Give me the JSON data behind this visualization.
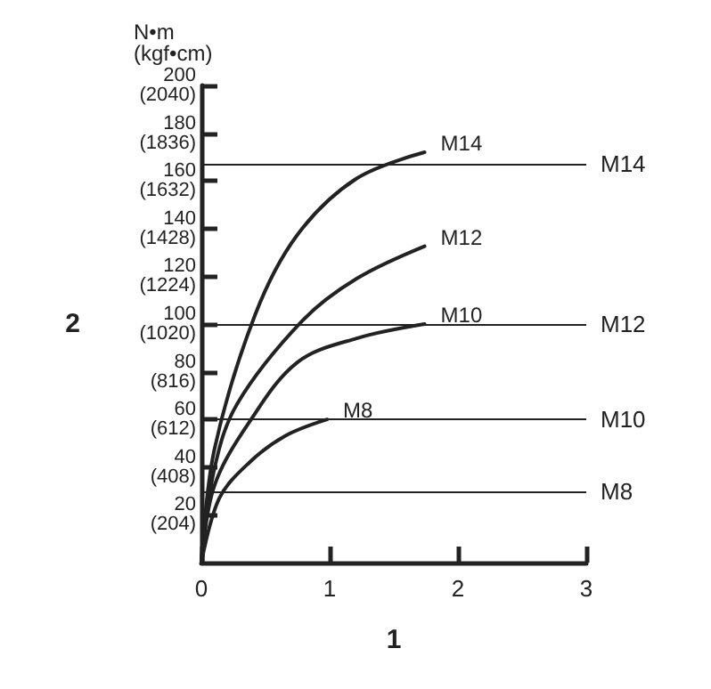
{
  "chart_data": {
    "type": "line",
    "xlabel": "1",
    "y2label": "2",
    "annotations": [
      "N•m\n(kgf•cm)"
    ],
    "xlim": [
      0,
      3
    ],
    "xticks": [
      0,
      1,
      2,
      3
    ],
    "ylim": [
      0,
      200
    ],
    "yticks": [
      20,
      40,
      60,
      80,
      100,
      120,
      140,
      160,
      180,
      200
    ],
    "y2lim": [
      0,
      2040
    ],
    "y2ticks": [
      {
        "value": 204,
        "label": "(204)"
      },
      {
        "value": 408,
        "label": "(408)"
      },
      {
        "value": 612,
        "label": "(612)"
      },
      {
        "value": 816,
        "label": "(816)"
      },
      {
        "value": 1020,
        "label": "(1020)"
      },
      {
        "value": 1224,
        "label": "(1224)"
      },
      {
        "value": 1428,
        "label": "(1428)"
      },
      {
        "value": 1632,
        "label": "(1632)"
      },
      {
        "value": 1836,
        "label": "(1836)"
      },
      {
        "value": 2040,
        "label": "(2040)"
      }
    ],
    "grid": false,
    "legend": false,
    "marker": "none",
    "line_style": "solid",
    "series": [
      {
        "name": "M14",
        "color": "#222222",
        "x": [
          0,
          0.1,
          0.42,
          0.75,
          1.21,
          1.74
        ],
        "values": [
          0,
          47,
          104,
          137.5,
          161,
          172
        ]
      },
      {
        "name": "M12",
        "color": "#222222",
        "x": [
          0,
          0.1,
          0.28,
          0.79,
          1.21,
          1.74
        ],
        "values": [
          0,
          39,
          66.6,
          101.5,
          119,
          132.6
        ]
      },
      {
        "name": "M10",
        "color": "#222222",
        "x": [
          0,
          0.1,
          0.375,
          0.75,
          1.21,
          1.74
        ],
        "values": [
          0,
          32,
          59,
          84,
          94,
          100
        ]
      },
      {
        "name": "M8",
        "color": "#222222",
        "x": [
          0,
          0.14,
          0.375,
          0.65,
          0.98
        ],
        "values": [
          0,
          27,
          42,
          53,
          60
        ]
      }
    ],
    "ref_lines": [
      {
        "axis": "y",
        "value": 167,
        "label": "M14",
        "color": "#222222"
      },
      {
        "axis": "y",
        "value": 100,
        "label": "M12",
        "color": "#222222"
      },
      {
        "axis": "y",
        "value": 60,
        "label": "M10",
        "color": "#222222"
      },
      {
        "axis": "y",
        "value": 30,
        "label": "M8",
        "color": "#222222"
      }
    ]
  }
}
